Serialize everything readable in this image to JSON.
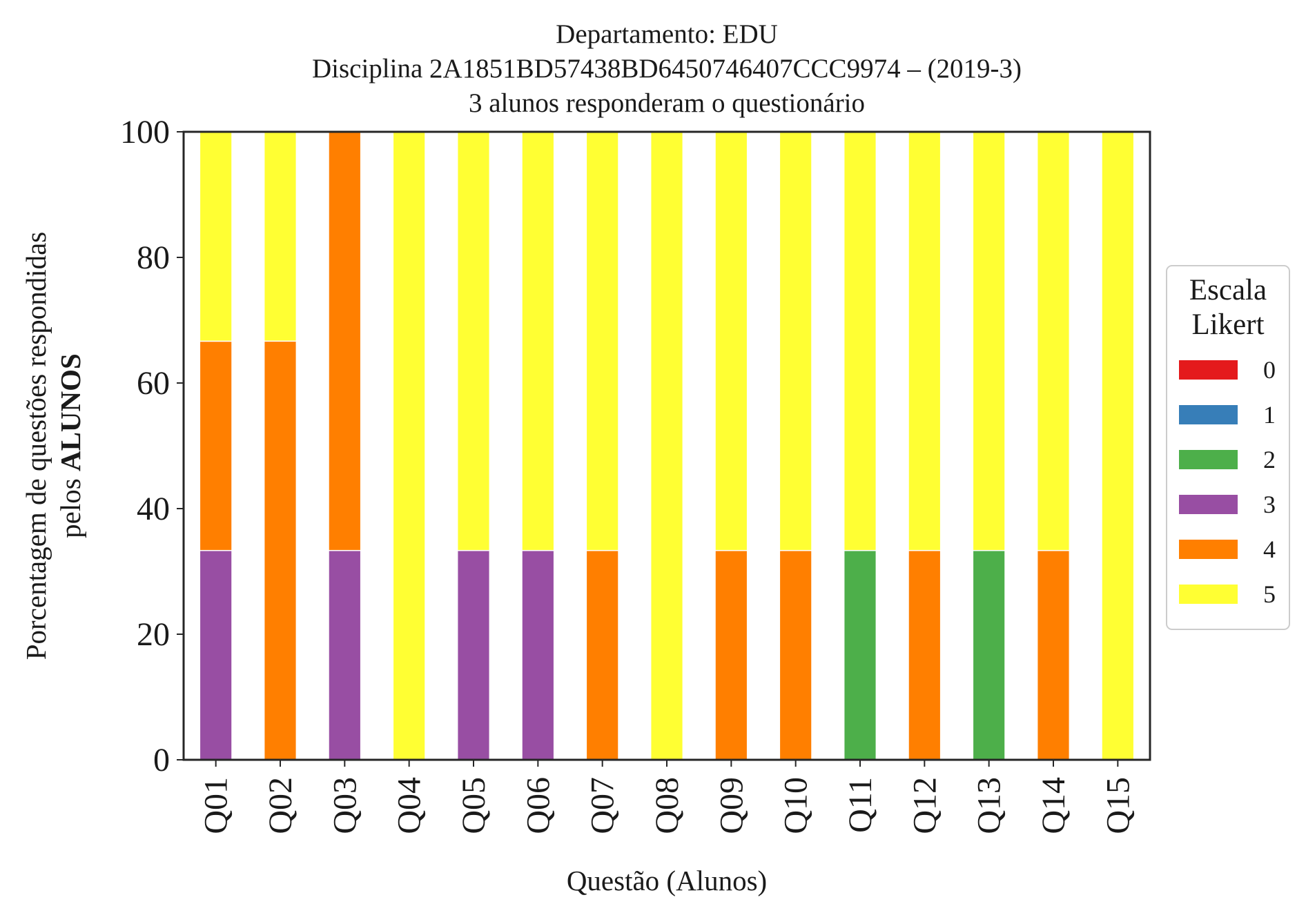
{
  "chart_data": {
    "type": "bar",
    "stacked": true,
    "title": [
      "Departamento: EDU",
      "Disciplina 2A1851BD57438BD6450746407CCC9974 – (2019-3)",
      "3 alunos responderam o questionário"
    ],
    "xlabel": "Questão (Alunos)",
    "ylabel_line1": "Porcentagem de questões respondidas",
    "ylabel_line2_prefix": "pelos ",
    "ylabel_line2_bold": "ALUNOS",
    "ylim": [
      0,
      100
    ],
    "yticks": [
      "0",
      "20",
      "40",
      "60",
      "80",
      "100"
    ],
    "grid": false,
    "categories": [
      "Q01",
      "Q02",
      "Q03",
      "Q04",
      "Q05",
      "Q06",
      "Q07",
      "Q08",
      "Q09",
      "Q10",
      "Q11",
      "Q12",
      "Q13",
      "Q14",
      "Q15"
    ],
    "legend": {
      "title_line1": "Escala",
      "title_line2": "Likert",
      "placement": "right"
    },
    "series": [
      {
        "name": "0",
        "color": "#e41a1c",
        "values": [
          0,
          0,
          0,
          0,
          0,
          0,
          0,
          0,
          0,
          0,
          0,
          0,
          0,
          0,
          0
        ]
      },
      {
        "name": "1",
        "color": "#377eb8",
        "values": [
          0,
          0,
          0,
          0,
          0,
          0,
          0,
          0,
          0,
          0,
          0,
          0,
          0,
          0,
          0
        ]
      },
      {
        "name": "2",
        "color": "#4daf4a",
        "values": [
          0,
          0,
          0,
          0,
          0,
          0,
          0,
          0,
          0,
          0,
          33.33,
          0,
          33.33,
          0,
          0
        ]
      },
      {
        "name": "3",
        "color": "#984ea3",
        "values": [
          33.33,
          0,
          33.33,
          0,
          33.33,
          33.33,
          0,
          0,
          0,
          0,
          0,
          0,
          0,
          0,
          0
        ]
      },
      {
        "name": "4",
        "color": "#ff7f00",
        "values": [
          33.33,
          66.67,
          66.67,
          0,
          0,
          0,
          33.33,
          0,
          33.33,
          33.33,
          0,
          33.33,
          0,
          33.33,
          0
        ]
      },
      {
        "name": "5",
        "color": "#ffff33",
        "values": [
          33.33,
          33.33,
          0,
          100,
          66.67,
          66.67,
          66.67,
          100,
          66.67,
          66.67,
          66.67,
          66.67,
          66.67,
          66.67,
          100
        ]
      }
    ]
  }
}
